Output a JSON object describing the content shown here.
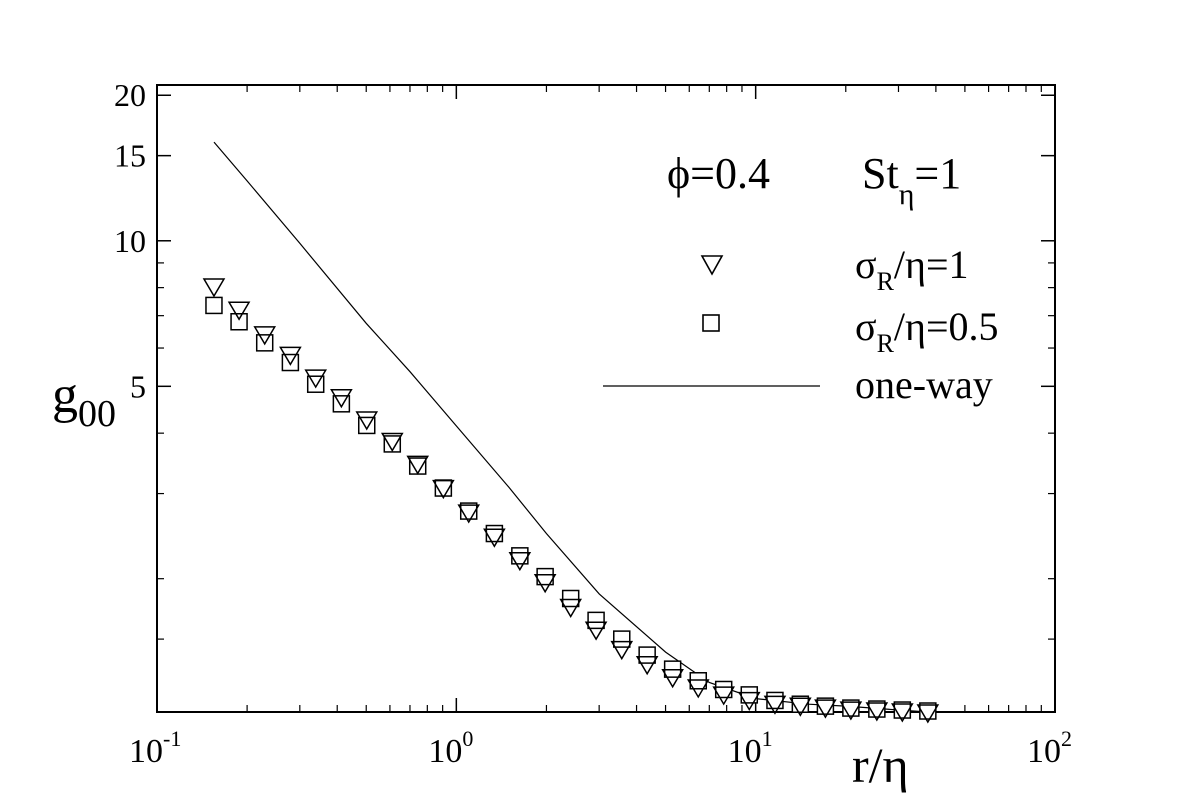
{
  "chart_data": {
    "type": "scatter",
    "annotation": {
      "phi_symbol": "ϕ",
      "phi_value": "=0.4",
      "st_base": "St",
      "st_sub": "η",
      "st_value": "=1"
    },
    "xlabel": "r/η",
    "ylabel": {
      "base": "g",
      "sub": "00"
    },
    "x_scale": "log",
    "y_scale": "log",
    "xlim": [
      0.1,
      100
    ],
    "ylim": [
      1.06,
      21
    ],
    "x_ticks": [
      {
        "value": 0.1,
        "base": "10",
        "exp": "-1"
      },
      {
        "value": 1,
        "base": "10",
        "exp": "0"
      },
      {
        "value": 10,
        "base": "10",
        "exp": "1"
      },
      {
        "value": 100,
        "base": "10",
        "exp": "2"
      }
    ],
    "y_ticks": [
      {
        "value": 5,
        "label": "5"
      },
      {
        "value": 10,
        "label": "10"
      },
      {
        "value": 15,
        "label": "15"
      },
      {
        "value": 20,
        "label": "20"
      }
    ],
    "y_minor_ticks": [
      1.5,
      2,
      3,
      4,
      6,
      7,
      8,
      9
    ],
    "grid": false,
    "legend_position": "right",
    "series": [
      {
        "name": "σR/η=1",
        "legend": {
          "sym": "σ",
          "sub": "R",
          "rest": "/η=1"
        },
        "marker": "triangle-down",
        "x": [
          0.155,
          0.188,
          0.229,
          0.279,
          0.339,
          0.413,
          0.502,
          0.611,
          0.743,
          0.905,
          1.1,
          1.34,
          1.63,
          1.98,
          2.41,
          2.93,
          3.57,
          4.34,
          5.28,
          6.43,
          7.82,
          9.52,
          11.6,
          14.1,
          17.1,
          20.8,
          25.4,
          30.9,
          37.6
        ],
        "y": [
          8.1,
          7.25,
          6.45,
          5.85,
          5.25,
          4.78,
          4.3,
          3.88,
          3.48,
          3.1,
          2.76,
          2.46,
          2.2,
          1.98,
          1.76,
          1.58,
          1.44,
          1.34,
          1.26,
          1.2,
          1.16,
          1.13,
          1.11,
          1.1,
          1.09,
          1.08,
          1.075,
          1.07,
          1.065
        ]
      },
      {
        "name": "σR/η=0.5",
        "legend": {
          "sym": "σ",
          "sub": "R",
          "rest": "/η=0.5"
        },
        "marker": "square",
        "x": [
          0.155,
          0.188,
          0.229,
          0.279,
          0.339,
          0.413,
          0.502,
          0.611,
          0.743,
          0.905,
          1.1,
          1.34,
          1.63,
          1.98,
          2.41,
          2.93,
          3.57,
          4.34,
          5.28,
          6.43,
          7.82,
          9.52,
          11.6,
          14.1,
          17.1,
          20.8,
          25.4,
          30.9,
          37.6
        ],
        "y": [
          7.35,
          6.8,
          6.15,
          5.6,
          5.05,
          4.6,
          4.15,
          3.8,
          3.42,
          3.08,
          2.76,
          2.48,
          2.23,
          2.02,
          1.82,
          1.64,
          1.5,
          1.39,
          1.3,
          1.23,
          1.18,
          1.15,
          1.12,
          1.1,
          1.09,
          1.08,
          1.075,
          1.07,
          1.065
        ]
      },
      {
        "name": "one-way",
        "marker": "line",
        "x": [
          0.155,
          0.2,
          0.3,
          0.5,
          0.7,
          1.0,
          1.5,
          2.0,
          3.0,
          5.0,
          7.0,
          10,
          15,
          20,
          30,
          37.6
        ],
        "y": [
          16.0,
          13.3,
          9.88,
          6.75,
          5.36,
          4.14,
          3.09,
          2.48,
          1.86,
          1.41,
          1.22,
          1.13,
          1.1,
          1.09,
          1.07,
          1.06
        ]
      }
    ]
  }
}
